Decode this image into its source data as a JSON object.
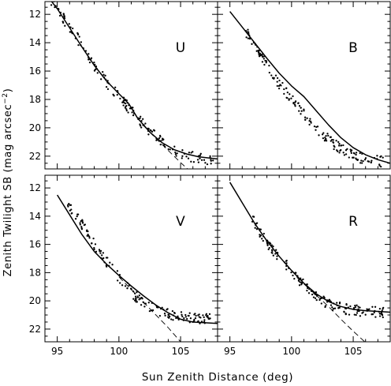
{
  "figure": {
    "xlabel": "Sun Zenith Distance (deg)",
    "ylabel": "Zenith Twilight SB (mag arcsec",
    "ylabel_exp": "−2",
    "ylabel_close": ")"
  },
  "chart_data": [
    {
      "type": "scatter",
      "label": "U",
      "xlim": [
        94,
        108
      ],
      "ylim": [
        22.9,
        11.1
      ],
      "xticks": [
        95,
        100,
        105
      ],
      "yticks": [
        12,
        14,
        16,
        18,
        20,
        22
      ],
      "model": {
        "x": [
          94.5,
          95,
          96,
          97,
          98,
          99,
          100,
          100.8,
          101.5,
          102.5,
          103.5,
          104.5,
          105.5,
          106.5,
          107.5,
          108
        ],
        "y": [
          11.05,
          11.6,
          12.95,
          14.3,
          15.6,
          16.7,
          17.6,
          18.3,
          19.3,
          20.3,
          21.05,
          21.55,
          21.85,
          22.05,
          22.15,
          22.2
        ]
      },
      "extrapolation": {
        "x": [
          102,
          103,
          104,
          105,
          106
        ],
        "y": [
          19.85,
          20.75,
          21.6,
          22.45,
          23.25
        ]
      },
      "observed": {
        "x": [
          94.4,
          95,
          95.5,
          96,
          96.5,
          97,
          97.5,
          98,
          98.5,
          99,
          99.5,
          100,
          100.5,
          101,
          101.5,
          102,
          102.5,
          103,
          103.5,
          104,
          104.5,
          105,
          105.5,
          106,
          106.5,
          107,
          107.5,
          108
        ],
        "y": [
          11.05,
          11.6,
          12.3,
          12.9,
          13.5,
          14.2,
          14.9,
          15.6,
          16.2,
          16.8,
          17.3,
          17.8,
          18.3,
          18.8,
          19.3,
          19.8,
          20.2,
          20.6,
          21.0,
          21.35,
          21.6,
          21.8,
          21.95,
          22.05,
          22.1,
          22.2,
          22.25,
          22.3
        ]
      }
    },
    {
      "type": "scatter",
      "label": "B",
      "xlim": [
        94,
        108
      ],
      "ylim": [
        22.9,
        11.1
      ],
      "xticks": [
        95,
        100,
        105
      ],
      "yticks": [
        12,
        14,
        16,
        18,
        20,
        22
      ],
      "model": {
        "x": [
          95,
          96,
          97,
          98,
          99,
          100,
          101,
          102,
          103,
          104,
          105,
          106,
          107,
          108
        ],
        "y": [
          11.8,
          12.9,
          14.0,
          15.1,
          16.15,
          17.05,
          17.8,
          18.8,
          19.8,
          20.7,
          21.4,
          21.9,
          22.25,
          22.5
        ]
      },
      "observed": {
        "x": [
          96.3,
          96.5,
          96.8,
          97,
          97.5,
          98,
          98.5,
          99,
          99.5,
          100,
          100.5,
          101,
          101.5,
          102,
          102.5,
          103,
          103.5,
          104,
          104.5,
          105,
          105.5,
          106,
          106.5,
          107,
          107.5
        ],
        "y": [
          13.2,
          13.5,
          13.9,
          14.3,
          14.9,
          15.6,
          16.3,
          16.9,
          17.4,
          17.95,
          18.5,
          19.0,
          19.55,
          20.0,
          20.45,
          20.85,
          21.2,
          21.5,
          21.75,
          21.95,
          22.1,
          22.2,
          22.3,
          22.35,
          22.4
        ]
      }
    },
    {
      "type": "scatter",
      "label": "V",
      "xlim": [
        94,
        108
      ],
      "ylim": [
        22.9,
        11.1
      ],
      "xticks": [
        95,
        100,
        105
      ],
      "yticks": [
        12,
        14,
        16,
        18,
        20,
        22
      ],
      "model": {
        "x": [
          95,
          96,
          97,
          98,
          99,
          100,
          101,
          102,
          103,
          104,
          105,
          106,
          107,
          108
        ],
        "y": [
          12.5,
          13.9,
          15.3,
          16.5,
          17.4,
          18.2,
          18.95,
          19.65,
          20.3,
          20.85,
          21.3,
          21.5,
          21.55,
          21.6
        ]
      },
      "extrapolation": {
        "x": [
          100,
          101,
          102,
          103,
          104,
          105
        ],
        "y": [
          18.3,
          19.2,
          20.1,
          21.0,
          21.9,
          22.9
        ]
      },
      "observed": {
        "x": [
          95.8,
          96,
          96.5,
          97,
          97.5,
          98,
          98.5,
          99,
          99.5,
          100,
          100.5,
          101,
          101.5,
          102,
          102.5,
          103,
          103.5,
          104,
          104.5,
          105,
          105.5,
          106,
          106.5,
          107,
          107.5
        ],
        "y": [
          13.1,
          13.3,
          13.9,
          14.6,
          15.3,
          16.0,
          16.6,
          17.2,
          17.8,
          18.4,
          18.9,
          19.4,
          19.8,
          20.1,
          20.4,
          20.6,
          20.8,
          20.95,
          21.05,
          21.15,
          21.2,
          21.25,
          21.25,
          21.3,
          21.3
        ]
      }
    },
    {
      "type": "scatter",
      "label": "R",
      "xlim": [
        94,
        108
      ],
      "ylim": [
        22.9,
        11.1
      ],
      "xticks": [
        95,
        100,
        105
      ],
      "yticks": [
        12,
        14,
        16,
        18,
        20,
        22
      ],
      "model": {
        "x": [
          95,
          96,
          97,
          98,
          99,
          100,
          101,
          102,
          103,
          104,
          105,
          106,
          107,
          108
        ],
        "y": [
          11.6,
          13.05,
          14.5,
          15.75,
          16.85,
          17.85,
          18.75,
          19.5,
          20.05,
          20.4,
          20.6,
          20.7,
          20.75,
          20.8
        ]
      },
      "extrapolation": {
        "x": [
          101,
          102,
          103,
          104,
          105,
          106
        ],
        "y": [
          18.8,
          19.6,
          20.4,
          21.3,
          22.15,
          22.95
        ]
      },
      "observed": {
        "x": [
          96.8,
          97,
          97.3,
          97.6,
          98,
          98.5,
          99,
          99.5,
          100,
          100.5,
          101,
          101.5,
          102,
          102.5,
          103,
          103.5,
          104,
          104.5,
          105,
          105.5,
          106,
          106.5,
          107,
          107.5
        ],
        "y": [
          14.1,
          14.5,
          15.0,
          15.4,
          15.9,
          16.4,
          16.9,
          17.4,
          17.9,
          18.4,
          18.9,
          19.3,
          19.7,
          20.0,
          20.25,
          20.4,
          20.5,
          20.6,
          20.65,
          20.7,
          20.75,
          20.8,
          20.8,
          20.85
        ]
      }
    }
  ]
}
